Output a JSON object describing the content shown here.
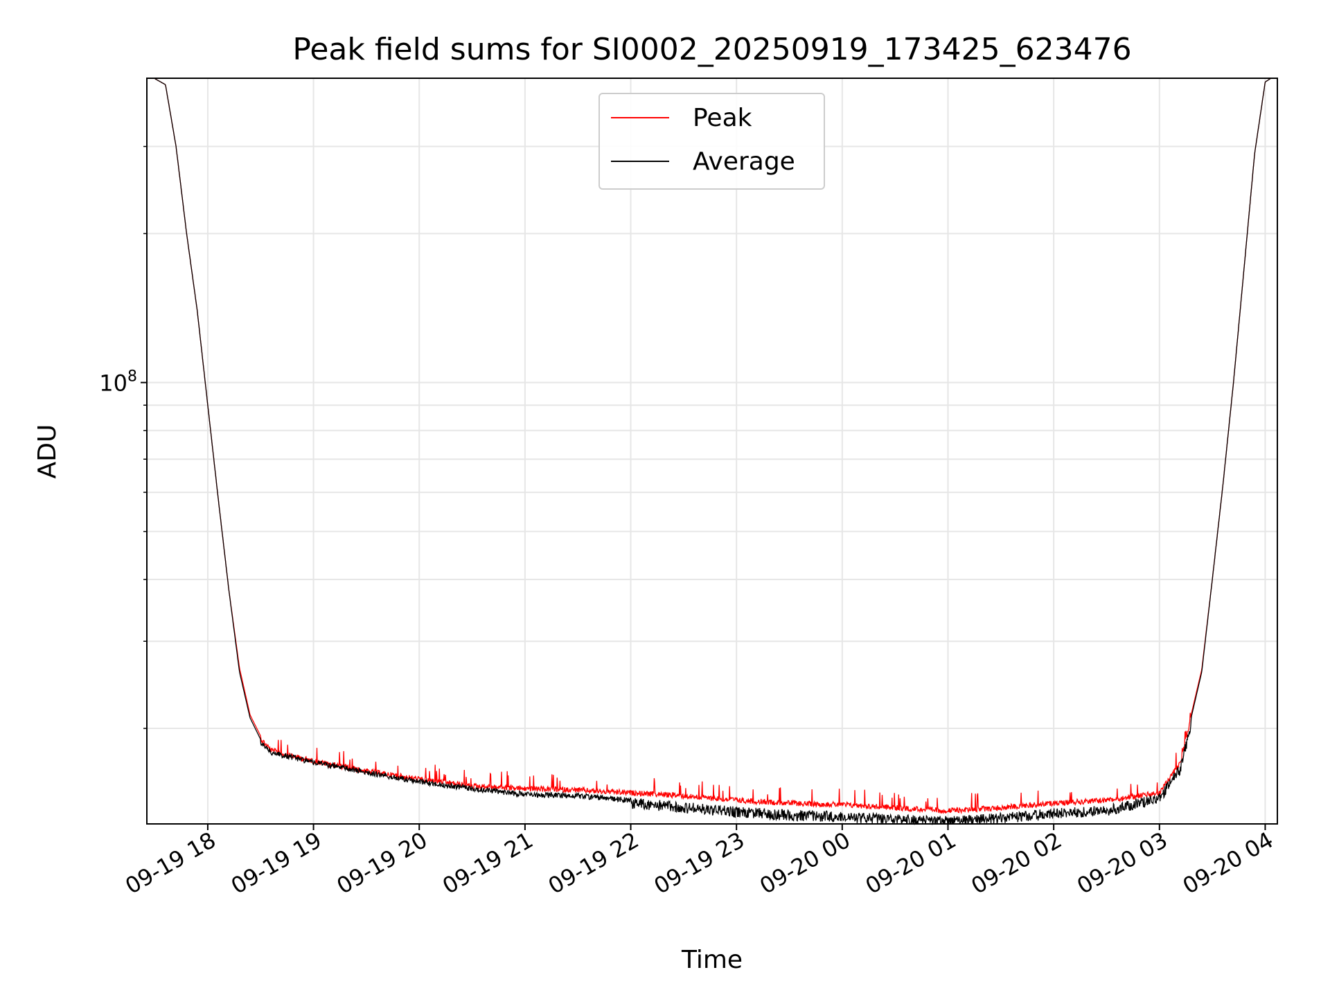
{
  "chart_data": {
    "type": "line",
    "title": "Peak field sums for SI0002_20250919_173425_623476",
    "xlabel": "Time",
    "ylabel": "ADU",
    "y_scale": "log",
    "grid": true,
    "legend": {
      "placement": "top-center",
      "entries": [
        "Peak",
        "Average"
      ]
    },
    "colors": {
      "Peak": "#ff0000",
      "Average": "#000000",
      "grid": "#e6e6e6"
    },
    "x_unit": "hours since 09-19 17:00",
    "xlim": [
      0.424,
      11.115
    ],
    "ylim_log10": [
      7.108,
      8.615
    ],
    "x_ticks": [
      {
        "hour": 1,
        "label": "09-19 18"
      },
      {
        "hour": 2,
        "label": "09-19 19"
      },
      {
        "hour": 3,
        "label": "09-19 20"
      },
      {
        "hour": 4,
        "label": "09-19 21"
      },
      {
        "hour": 5,
        "label": "09-19 22"
      },
      {
        "hour": 6,
        "label": "09-19 23"
      },
      {
        "hour": 7,
        "label": "09-20 00"
      },
      {
        "hour": 8,
        "label": "09-20 01"
      },
      {
        "hour": 9,
        "label": "09-20 02"
      },
      {
        "hour": 10,
        "label": "09-20 03"
      },
      {
        "hour": 11,
        "label": "09-20 04"
      }
    ],
    "y_major_ticks": [
      {
        "value": 100000000,
        "label": "10",
        "exponent": "8"
      }
    ],
    "y_minor_ticks": [
      20000000,
      30000000,
      40000000,
      50000000,
      60000000,
      70000000,
      80000000,
      90000000,
      200000000,
      300000000
    ],
    "series": [
      {
        "name": "Average",
        "x": [
          0.424,
          0.6,
          0.7,
          0.8,
          0.9,
          1.0,
          1.1,
          1.2,
          1.3,
          1.4,
          1.5,
          1.6,
          1.7,
          2.0,
          2.5,
          3.0,
          3.5,
          4.0,
          4.5,
          5.0,
          5.5,
          6.0,
          6.5,
          7.0,
          7.5,
          8.0,
          8.5,
          9.0,
          9.5,
          10.0,
          10.2,
          10.4,
          10.5,
          10.6,
          10.7,
          10.8,
          10.9,
          11.0,
          11.115
        ],
        "y": [
          420000000,
          400000000,
          300000000,
          200000000,
          140000000,
          90000000,
          58000000,
          38000000,
          26000000,
          21000000,
          19000000,
          18100000,
          17900000,
          17300000,
          16500000,
          15800000,
          15300000,
          14900000,
          14800000,
          14500000,
          14200000,
          13900000,
          13700000,
          13600000,
          13400000,
          13300000,
          13500000,
          13800000,
          14000000,
          14800000,
          17000000,
          26000000,
          40000000,
          62000000,
          100000000,
          170000000,
          290000000,
          405000000,
          420000000
        ]
      },
      {
        "name": "Peak",
        "x": [
          0.424,
          0.6,
          0.7,
          0.8,
          0.9,
          1.0,
          1.1,
          1.2,
          1.3,
          1.4,
          1.5,
          1.6,
          1.7,
          2.0,
          2.5,
          3.0,
          3.5,
          4.0,
          4.5,
          5.0,
          5.5,
          6.0,
          6.5,
          7.0,
          7.5,
          8.0,
          8.5,
          9.0,
          9.5,
          10.0,
          10.2,
          10.4,
          10.5,
          10.6,
          10.7,
          10.8,
          10.9,
          11.0,
          11.115
        ],
        "y": [
          420000000,
          400000000,
          300000000,
          200000000,
          140000000,
          90000000,
          58000000,
          38000000,
          26500000,
          21300000,
          19300000,
          18300000,
          18000000,
          17400000,
          16600000,
          16000000,
          15500000,
          15300000,
          15200000,
          15000000,
          14800000,
          14500000,
          14300000,
          14200000,
          14000000,
          13800000,
          14000000,
          14300000,
          14500000,
          15000000,
          17300000,
          26300000,
          40000000,
          62000000,
          100000000,
          170000000,
          290000000,
          405000000,
          420000000
        ]
      }
    ]
  }
}
